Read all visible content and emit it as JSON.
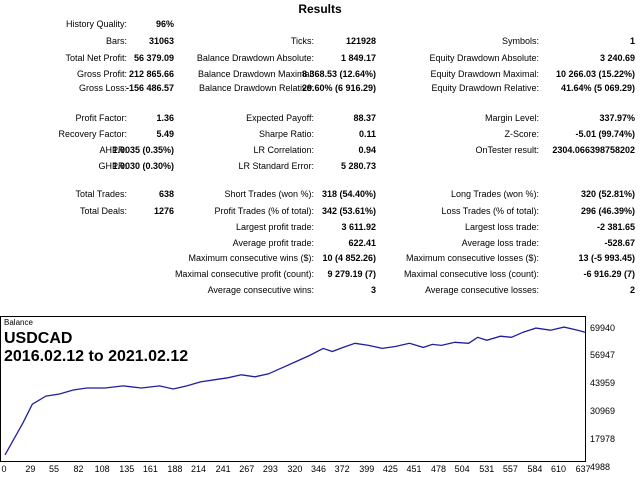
{
  "title": "Results",
  "rows": [
    {
      "label": "History Quality:",
      "value": "96%"
    },
    {
      "label": "Bars:",
      "value": "31063"
    },
    {
      "label": "Ticks:",
      "value": "121928"
    },
    {
      "label": "Symbols:",
      "value": "1"
    },
    {
      "label": "Total Net Profit:",
      "value": "56 379.09"
    },
    {
      "label": "Balance Drawdown Absolute:",
      "value": "1 849.17"
    },
    {
      "label": "Equity Drawdown Absolute:",
      "value": "3 240.69"
    },
    {
      "label": "Gross Profit:",
      "value": "212 865.66"
    },
    {
      "label": "Balance Drawdown Maximal:",
      "value": "8 368.53 (12.64%)"
    },
    {
      "label": "Equity Drawdown Maximal:",
      "value": "10 266.03 (15.22%)"
    },
    {
      "label": "Gross Loss:",
      "value": "-156 486.57"
    },
    {
      "label": "Balance Drawdown Relative:",
      "value": "29.60% (6 916.29)"
    },
    {
      "label": "Equity Drawdown Relative:",
      "value": "41.64% (5 069.29)"
    },
    {
      "label": "Profit Factor:",
      "value": "1.36"
    },
    {
      "label": "Expected Payoff:",
      "value": "88.37"
    },
    {
      "label": "Margin Level:",
      "value": "337.97%"
    },
    {
      "label": "Recovery Factor:",
      "value": "5.49"
    },
    {
      "label": "Sharpe Ratio:",
      "value": "0.11"
    },
    {
      "label": "Z-Score:",
      "value": "-5.01 (99.74%)"
    },
    {
      "label": "AHPR:",
      "value": "1.0035 (0.35%)"
    },
    {
      "label": "LR Correlation:",
      "value": "0.94"
    },
    {
      "label": "OnTester result:",
      "value": "2304.066398758202"
    },
    {
      "label": "GHPR:",
      "value": "1.0030 (0.30%)"
    },
    {
      "label": "LR Standard Error:",
      "value": "5 280.73"
    },
    {
      "label": "Total Trades:",
      "value": "638"
    },
    {
      "label": "Short Trades (won %):",
      "value": "318 (54.40%)"
    },
    {
      "label": "Long Trades (won %):",
      "value": "320 (52.81%)"
    },
    {
      "label": "Total Deals:",
      "value": "1276"
    },
    {
      "label": "Profit Trades (% of total):",
      "value": "342 (53.61%)"
    },
    {
      "label": "Loss Trades (% of total):",
      "value": "296 (46.39%)"
    },
    {
      "label": "Largest profit trade:",
      "value": "3 611.92"
    },
    {
      "label": "Largest loss trade:",
      "value": "-2 381.65"
    },
    {
      "label": "Average profit trade:",
      "value": "622.41"
    },
    {
      "label": "Average loss trade:",
      "value": "-528.67"
    },
    {
      "label": "Maximum consecutive wins ($):",
      "value": "10 (4 852.26)"
    },
    {
      "label": "Maximum consecutive losses ($):",
      "value": "13 (-5 993.45)"
    },
    {
      "label": "Maximal consecutive profit (count):",
      "value": "9 279.19 (7)"
    },
    {
      "label": "Maximal consecutive loss (count):",
      "value": "-6 916.29 (7)"
    },
    {
      "label": "Average consecutive wins:",
      "value": "3"
    },
    {
      "label": "Average consecutive losses:",
      "value": "2"
    }
  ],
  "chart_data": {
    "type": "line",
    "title": "Balance",
    "annotations": [
      "USDCAD",
      "2016.02.12 to 2021.02.12"
    ],
    "ylim": [
      4988,
      75000
    ],
    "yticks": [
      "69940",
      "56947",
      "43959",
      "30969",
      "17978",
      "4988"
    ],
    "xticks": [
      "0",
      "29",
      "55",
      "82",
      "108",
      "135",
      "161",
      "188",
      "214",
      "241",
      "267",
      "293",
      "320",
      "346",
      "372",
      "399",
      "425",
      "451",
      "478",
      "504",
      "531",
      "557",
      "584",
      "610",
      "637"
    ],
    "xlim": [
      0,
      638
    ],
    "series": [
      {
        "color": "#1f1fa0",
        "x": [
          0,
          10,
          20,
          30,
          45,
          60,
          75,
          90,
          110,
          130,
          150,
          170,
          185,
          200,
          215,
          230,
          245,
          260,
          275,
          290,
          305,
          320,
          335,
          350,
          360,
          372,
          385,
          400,
          415,
          430,
          445,
          460,
          470,
          480,
          495,
          510,
          520,
          530,
          545,
          557,
          570,
          584,
          600,
          615,
          630,
          638
        ],
        "y": [
          8000,
          16000,
          24000,
          33000,
          37000,
          38000,
          40000,
          41000,
          41000,
          42000,
          41000,
          42000,
          40500,
          42000,
          44000,
          45000,
          46000,
          47500,
          46500,
          48000,
          51000,
          54000,
          57000,
          60500,
          59000,
          61000,
          63000,
          62000,
          60500,
          61500,
          63000,
          61000,
          62500,
          62000,
          63500,
          63000,
          66000,
          64500,
          66500,
          66000,
          68500,
          70500,
          69500,
          71000,
          69500,
          68500
        ]
      }
    ]
  }
}
